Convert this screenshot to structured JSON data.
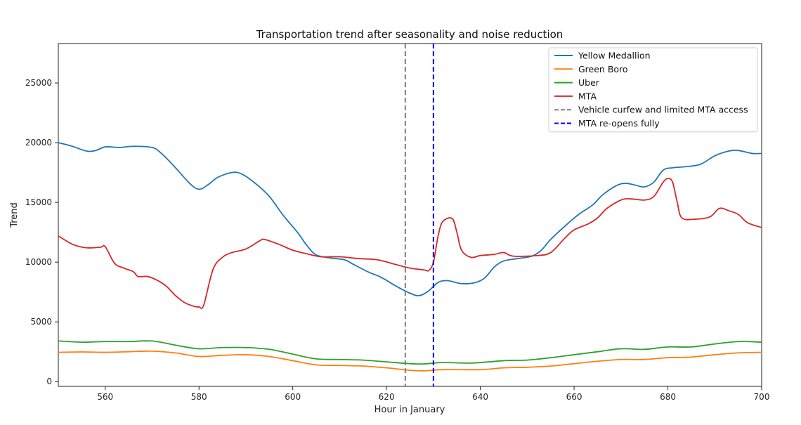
{
  "chart_data": {
    "type": "line",
    "title": "Transportation trend after seasonality and noise reduction",
    "xlabel": "Hour in January",
    "ylabel": "Trend",
    "xlim": [
      550,
      700
    ],
    "ylim": [
      -400,
      28300
    ],
    "xticks": [
      560,
      580,
      600,
      620,
      640,
      660,
      680,
      700
    ],
    "yticks": [
      0,
      5000,
      10000,
      15000,
      20000,
      25000
    ],
    "grid": false,
    "legend_position": "top-right",
    "series": [
      {
        "name": "Yellow Medallion",
        "color": "#1f77b4",
        "points": [
          [
            550,
            20000
          ],
          [
            553,
            19700
          ],
          [
            556,
            19300
          ],
          [
            558,
            19350
          ],
          [
            560,
            19650
          ],
          [
            563,
            19600
          ],
          [
            566,
            19700
          ],
          [
            570,
            19600
          ],
          [
            572,
            19100
          ],
          [
            575,
            17900
          ],
          [
            578,
            16600
          ],
          [
            580,
            16100
          ],
          [
            582,
            16500
          ],
          [
            584,
            17100
          ],
          [
            587,
            17500
          ],
          [
            589,
            17400
          ],
          [
            592,
            16600
          ],
          [
            595,
            15500
          ],
          [
            598,
            13900
          ],
          [
            601,
            12500
          ],
          [
            603,
            11400
          ],
          [
            605,
            10600
          ],
          [
            608,
            10350
          ],
          [
            611,
            10200
          ],
          [
            613,
            9800
          ],
          [
            616,
            9200
          ],
          [
            619,
            8700
          ],
          [
            622,
            8000
          ],
          [
            625,
            7400
          ],
          [
            627,
            7200
          ],
          [
            629,
            7600
          ],
          [
            631,
            8300
          ],
          [
            633,
            8450
          ],
          [
            636,
            8200
          ],
          [
            639,
            8300
          ],
          [
            641,
            8700
          ],
          [
            643,
            9600
          ],
          [
            645,
            10100
          ],
          [
            648,
            10300
          ],
          [
            651,
            10500
          ],
          [
            653,
            11000
          ],
          [
            655,
            11900
          ],
          [
            658,
            13000
          ],
          [
            661,
            14000
          ],
          [
            664,
            14800
          ],
          [
            666,
            15600
          ],
          [
            669,
            16400
          ],
          [
            671,
            16600
          ],
          [
            673,
            16450
          ],
          [
            675,
            16300
          ],
          [
            677,
            16700
          ],
          [
            679,
            17700
          ],
          [
            681,
            17900
          ],
          [
            684,
            18000
          ],
          [
            687,
            18200
          ],
          [
            690,
            18900
          ],
          [
            693,
            19300
          ],
          [
            695,
            19350
          ],
          [
            698,
            19100
          ],
          [
            700,
            19100
          ]
        ]
      },
      {
        "name": "Green Boro",
        "color": "#ff7f0e",
        "points": [
          [
            550,
            2450
          ],
          [
            555,
            2480
          ],
          [
            560,
            2450
          ],
          [
            565,
            2500
          ],
          [
            570,
            2550
          ],
          [
            575,
            2400
          ],
          [
            580,
            2100
          ],
          [
            585,
            2200
          ],
          [
            590,
            2250
          ],
          [
            595,
            2100
          ],
          [
            600,
            1750
          ],
          [
            605,
            1400
          ],
          [
            610,
            1350
          ],
          [
            615,
            1300
          ],
          [
            620,
            1150
          ],
          [
            625,
            950
          ],
          [
            628,
            900
          ],
          [
            632,
            1000
          ],
          [
            640,
            1000
          ],
          [
            645,
            1150
          ],
          [
            650,
            1200
          ],
          [
            655,
            1300
          ],
          [
            660,
            1500
          ],
          [
            665,
            1700
          ],
          [
            670,
            1850
          ],
          [
            675,
            1850
          ],
          [
            680,
            2000
          ],
          [
            685,
            2050
          ],
          [
            690,
            2250
          ],
          [
            695,
            2400
          ],
          [
            700,
            2450
          ]
        ]
      },
      {
        "name": "Uber",
        "color": "#2ca02c",
        "points": [
          [
            550,
            3400
          ],
          [
            555,
            3300
          ],
          [
            560,
            3350
          ],
          [
            565,
            3350
          ],
          [
            570,
            3400
          ],
          [
            575,
            3050
          ],
          [
            580,
            2750
          ],
          [
            585,
            2850
          ],
          [
            590,
            2850
          ],
          [
            595,
            2700
          ],
          [
            600,
            2300
          ],
          [
            605,
            1900
          ],
          [
            610,
            1850
          ],
          [
            615,
            1800
          ],
          [
            620,
            1650
          ],
          [
            625,
            1500
          ],
          [
            628,
            1480
          ],
          [
            632,
            1600
          ],
          [
            638,
            1550
          ],
          [
            645,
            1750
          ],
          [
            650,
            1800
          ],
          [
            655,
            2000
          ],
          [
            660,
            2250
          ],
          [
            665,
            2500
          ],
          [
            670,
            2750
          ],
          [
            675,
            2700
          ],
          [
            680,
            2900
          ],
          [
            685,
            2900
          ],
          [
            690,
            3150
          ],
          [
            695,
            3350
          ],
          [
            700,
            3300
          ]
        ]
      },
      {
        "name": "MTA",
        "color": "#d62728",
        "points": [
          [
            550,
            12200
          ],
          [
            553,
            11500
          ],
          [
            556,
            11200
          ],
          [
            559,
            11250
          ],
          [
            560,
            11300
          ],
          [
            562,
            9900
          ],
          [
            564,
            9500
          ],
          [
            566,
            9200
          ],
          [
            567,
            8800
          ],
          [
            569,
            8800
          ],
          [
            571,
            8500
          ],
          [
            573,
            8000
          ],
          [
            575,
            7200
          ],
          [
            577,
            6600
          ],
          [
            579,
            6300
          ],
          [
            580,
            6250
          ],
          [
            581,
            6400
          ],
          [
            583,
            9400
          ],
          [
            585,
            10400
          ],
          [
            587,
            10800
          ],
          [
            590,
            11100
          ],
          [
            593,
            11800
          ],
          [
            594,
            11900
          ],
          [
            597,
            11500
          ],
          [
            600,
            11000
          ],
          [
            603,
            10700
          ],
          [
            606,
            10450
          ],
          [
            610,
            10450
          ],
          [
            614,
            10300
          ],
          [
            618,
            10200
          ],
          [
            622,
            9800
          ],
          [
            625,
            9500
          ],
          [
            628,
            9350
          ],
          [
            629,
            9300
          ],
          [
            630,
            10000
          ],
          [
            631,
            12200
          ],
          [
            632,
            13400
          ],
          [
            634,
            13650
          ],
          [
            635,
            12500
          ],
          [
            636,
            11000
          ],
          [
            638,
            10400
          ],
          [
            640,
            10550
          ],
          [
            643,
            10650
          ],
          [
            645,
            10800
          ],
          [
            647,
            10500
          ],
          [
            652,
            10550
          ],
          [
            655,
            10800
          ],
          [
            658,
            12000
          ],
          [
            660,
            12700
          ],
          [
            663,
            13200
          ],
          [
            665,
            13700
          ],
          [
            667,
            14500
          ],
          [
            670,
            15200
          ],
          [
            672,
            15300
          ],
          [
            675,
            15200
          ],
          [
            677,
            15500
          ],
          [
            679,
            16700
          ],
          [
            680,
            17000
          ],
          [
            681,
            16700
          ],
          [
            682,
            15000
          ],
          [
            683,
            13700
          ],
          [
            686,
            13600
          ],
          [
            689,
            13800
          ],
          [
            691,
            14500
          ],
          [
            693,
            14300
          ],
          [
            695,
            14000
          ],
          [
            697,
            13300
          ],
          [
            700,
            12900
          ]
        ]
      }
    ],
    "vlines": [
      {
        "name": "Vehicle curfew and limited MTA access",
        "x": 624,
        "color": "#7f7f7f",
        "style": "dashed"
      },
      {
        "name": "MTA re-opens fully",
        "x": 630,
        "color": "#0000ff",
        "style": "dashed"
      }
    ]
  }
}
